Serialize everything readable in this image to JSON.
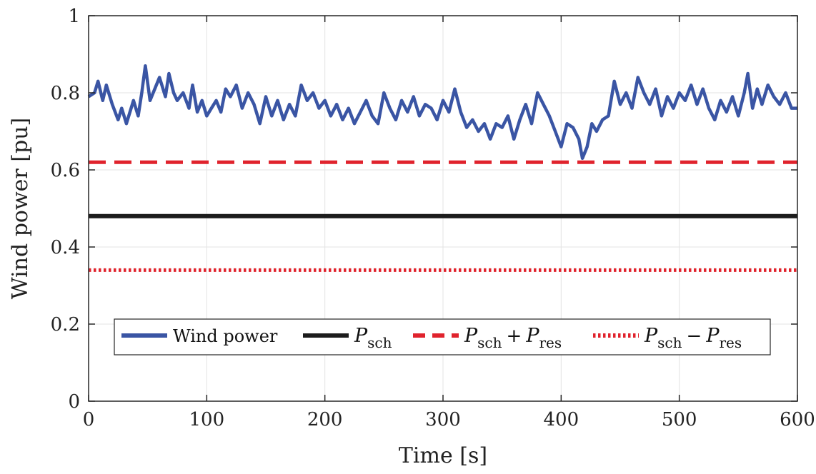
{
  "chart_data": {
    "type": "line",
    "xlabel": "Time [s]",
    "ylabel": "Wind power [pu]",
    "xlim": [
      0,
      600
    ],
    "ylim": [
      0,
      1
    ],
    "xticks": [
      0,
      100,
      200,
      300,
      400,
      500,
      600
    ],
    "yticks": [
      0,
      0.2,
      0.4,
      0.6,
      0.8,
      1
    ],
    "xtick_labels": [
      "0",
      "100",
      "200",
      "300",
      "400",
      "500",
      "600"
    ],
    "ytick_labels": [
      "0",
      "0.2",
      "0.4",
      "0.6",
      "0.8",
      "1"
    ],
    "grid": true,
    "legend_position": "bottom-center",
    "series": [
      {
        "name": "Wind power",
        "color": "#3a55a4",
        "style": "solid",
        "x": [
          0,
          5,
          8,
          12,
          15,
          20,
          25,
          28,
          32,
          38,
          42,
          45,
          48,
          52,
          56,
          60,
          65,
          68,
          72,
          75,
          80,
          85,
          88,
          92,
          96,
          100,
          104,
          108,
          112,
          116,
          120,
          125,
          130,
          135,
          140,
          145,
          150,
          155,
          160,
          165,
          170,
          175,
          180,
          185,
          190,
          195,
          200,
          205,
          210,
          215,
          220,
          225,
          230,
          235,
          240,
          245,
          250,
          255,
          260,
          265,
          270,
          275,
          280,
          285,
          290,
          295,
          300,
          305,
          310,
          315,
          320,
          325,
          330,
          335,
          340,
          345,
          350,
          355,
          360,
          365,
          370,
          375,
          380,
          385,
          390,
          395,
          400,
          405,
          410,
          415,
          418,
          422,
          426,
          430,
          435,
          440,
          445,
          450,
          455,
          460,
          465,
          470,
          475,
          480,
          485,
          490,
          495,
          500,
          505,
          510,
          515,
          520,
          525,
          530,
          535,
          540,
          545,
          550,
          555,
          558,
          562,
          566,
          570,
          575,
          580,
          585,
          590,
          595,
          600
        ],
        "y": [
          0.79,
          0.8,
          0.83,
          0.78,
          0.82,
          0.77,
          0.73,
          0.76,
          0.72,
          0.78,
          0.74,
          0.8,
          0.87,
          0.78,
          0.81,
          0.84,
          0.79,
          0.85,
          0.8,
          0.78,
          0.8,
          0.76,
          0.82,
          0.75,
          0.78,
          0.74,
          0.76,
          0.78,
          0.75,
          0.81,
          0.79,
          0.82,
          0.76,
          0.8,
          0.77,
          0.72,
          0.79,
          0.74,
          0.78,
          0.73,
          0.77,
          0.74,
          0.82,
          0.78,
          0.8,
          0.76,
          0.78,
          0.74,
          0.77,
          0.73,
          0.76,
          0.72,
          0.75,
          0.78,
          0.74,
          0.72,
          0.8,
          0.76,
          0.73,
          0.78,
          0.75,
          0.79,
          0.74,
          0.77,
          0.76,
          0.73,
          0.78,
          0.75,
          0.81,
          0.75,
          0.71,
          0.73,
          0.7,
          0.72,
          0.68,
          0.72,
          0.71,
          0.74,
          0.68,
          0.73,
          0.77,
          0.72,
          0.8,
          0.77,
          0.74,
          0.7,
          0.66,
          0.72,
          0.71,
          0.68,
          0.63,
          0.66,
          0.72,
          0.7,
          0.73,
          0.74,
          0.83,
          0.77,
          0.8,
          0.76,
          0.84,
          0.8,
          0.77,
          0.81,
          0.74,
          0.79,
          0.76,
          0.8,
          0.78,
          0.82,
          0.77,
          0.81,
          0.76,
          0.73,
          0.78,
          0.75,
          0.79,
          0.74,
          0.8,
          0.85,
          0.76,
          0.81,
          0.77,
          0.82,
          0.79,
          0.77,
          0.8,
          0.76,
          0.76
        ]
      },
      {
        "name": "P_sch",
        "color": "#1c1c1c",
        "style": "solid",
        "x": [
          0,
          600
        ],
        "y": [
          0.48,
          0.48
        ]
      },
      {
        "name": "P_sch + P_res",
        "color": "#e0232d",
        "style": "dashed",
        "x": [
          0,
          600
        ],
        "y": [
          0.62,
          0.62
        ]
      },
      {
        "name": "P_sch − P_res",
        "color": "#e0232d",
        "style": "dotted",
        "x": [
          0,
          600
        ],
        "y": [
          0.34,
          0.34
        ]
      }
    ],
    "legend": {
      "wind_label": "Wind power",
      "p_symbol": "P",
      "sch_sub": "sch",
      "res_sub": "res",
      "plus_op": "+",
      "minus_op": "−"
    }
  }
}
